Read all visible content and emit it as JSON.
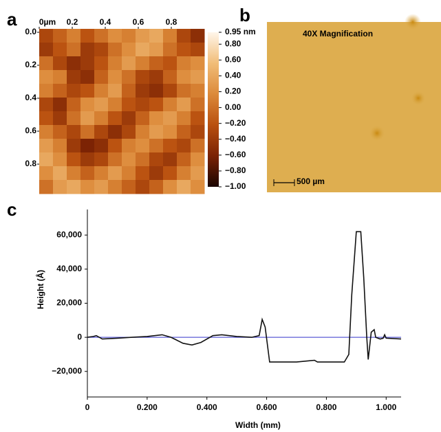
{
  "chart_data": [
    {
      "type": "heatmap",
      "panel_label": "a",
      "xlim": [
        0,
        1
      ],
      "ylim": [
        0,
        1
      ],
      "xticks": [
        {
          "value": 0,
          "label": "0µm"
        },
        0.2,
        0.4,
        0.6,
        0.8
      ],
      "yticks": [
        {
          "value": 0,
          "label": "0.0"
        },
        0.2,
        0.4,
        0.6,
        0.8
      ],
      "clim": [
        -1,
        0.95
      ],
      "colormap": [
        "#1a0500",
        "#7a2204",
        "#b9500f",
        "#dc8a3a",
        "#f1bd78",
        "#fff6ea"
      ],
      "cticks": [
        {
          "value": 0.95,
          "label": "0.95 nm"
        },
        {
          "value": 0.8,
          "label": "0.80"
        },
        {
          "value": 0.6,
          "label": "0.60"
        },
        {
          "value": 0.4,
          "label": "0.40"
        },
        {
          "value": 0.2,
          "label": "0.20"
        },
        {
          "value": 0,
          "label": "0.00"
        },
        {
          "value": -0.2,
          "label": "−0.20"
        },
        {
          "value": -0.4,
          "label": "−0.40"
        },
        {
          "value": -0.6,
          "label": "−0.60"
        },
        {
          "value": -0.8,
          "label": "−0.80"
        },
        {
          "value": -1,
          "label": "−1.00"
        }
      ],
      "values": [
        [
          -0.3,
          -0.1,
          0.1,
          -0.2,
          0.0,
          0.2,
          0.1,
          0.3,
          0.4,
          0.1,
          -0.3,
          -0.5
        ],
        [
          -0.4,
          -0.2,
          0.0,
          -0.4,
          -0.3,
          0.0,
          0.2,
          0.4,
          0.3,
          0.0,
          -0.2,
          -0.3
        ],
        [
          0.0,
          -0.3,
          -0.5,
          -0.4,
          -0.2,
          0.1,
          0.3,
          0.1,
          -0.1,
          -0.2,
          0.1,
          0.2
        ],
        [
          0.2,
          0.1,
          -0.4,
          -0.5,
          -0.1,
          0.2,
          0.0,
          -0.3,
          -0.4,
          -0.1,
          0.2,
          0.3
        ],
        [
          0.1,
          -0.1,
          -0.3,
          -0.2,
          0.1,
          0.3,
          -0.1,
          -0.4,
          -0.5,
          -0.3,
          0.0,
          0.1
        ],
        [
          -0.3,
          -0.5,
          -0.1,
          0.2,
          0.3,
          0.1,
          -0.2,
          -0.3,
          -0.2,
          0.1,
          0.3,
          0.0
        ],
        [
          -0.2,
          -0.4,
          0.0,
          0.3,
          0.1,
          -0.2,
          -0.4,
          -0.1,
          0.2,
          0.3,
          0.1,
          -0.2
        ],
        [
          0.1,
          -0.1,
          -0.3,
          0.0,
          -0.3,
          -0.5,
          -0.3,
          0.1,
          0.3,
          0.2,
          -0.1,
          -0.3
        ],
        [
          0.3,
          0.1,
          -0.4,
          -0.6,
          -0.5,
          -0.2,
          0.1,
          0.2,
          0.0,
          -0.2,
          -0.3,
          0.0
        ],
        [
          0.4,
          0.2,
          -0.2,
          -0.4,
          -0.3,
          0.0,
          0.2,
          0.0,
          -0.3,
          -0.4,
          -0.1,
          0.2
        ],
        [
          0.2,
          0.4,
          0.1,
          -0.1,
          0.1,
          0.3,
          0.1,
          -0.2,
          -0.4,
          -0.2,
          0.1,
          0.3
        ],
        [
          0.0,
          0.3,
          0.4,
          0.2,
          0.3,
          0.1,
          -0.1,
          -0.3,
          -0.1,
          0.2,
          0.4,
          0.2
        ]
      ]
    },
    {
      "type": "image",
      "panel_label": "b",
      "title": "40X Magnification",
      "scale_bar": "500 µm"
    },
    {
      "type": "line",
      "panel_label": "c",
      "xlabel": "Width (mm)",
      "ylabel": "Height (Å)",
      "xlim": [
        0,
        1.05
      ],
      "ylim": [
        -35000,
        75000
      ],
      "xticks": [
        0,
        {
          "value": 0.2,
          "label": "0.200"
        },
        {
          "value": 0.4,
          "label": "0.400"
        },
        {
          "value": 0.6,
          "label": "0.600"
        },
        {
          "value": 0.8,
          "label": "0.800"
        },
        {
          "value": 1.0,
          "label": "1.000"
        }
      ],
      "yticks": [
        {
          "value": 60000,
          "label": "60,000"
        },
        {
          "value": 40000,
          "label": "40,000"
        },
        {
          "value": 20000,
          "label": "20,000"
        },
        0,
        {
          "value": -20000,
          "label": "−20,000"
        }
      ],
      "hline": 0,
      "hline_color": "#5b5bd6",
      "x": [
        0,
        0.02,
        0.03,
        0.05,
        0.1,
        0.15,
        0.2,
        0.25,
        0.28,
        0.32,
        0.35,
        0.38,
        0.42,
        0.45,
        0.5,
        0.55,
        0.575,
        0.585,
        0.595,
        0.61,
        0.7,
        0.76,
        0.77,
        0.86,
        0.875,
        0.885,
        0.9,
        0.915,
        0.925,
        0.935,
        0.94,
        0.95,
        0.96,
        0.965,
        0.98,
        0.99,
        0.995,
        1.0,
        1.05
      ],
      "series": [
        {
          "color": "#111111",
          "values": [
            0,
            500,
            1000,
            -1000,
            -500,
            0,
            500,
            1500,
            0,
            -3500,
            -4500,
            -3000,
            1000,
            1500,
            500,
            0,
            1000,
            10500,
            6000,
            -14500,
            -14500,
            -13500,
            -14500,
            -14500,
            -10000,
            25000,
            62000,
            62000,
            35000,
            0,
            -13000,
            3000,
            4500,
            0,
            -1000,
            -500,
            1500,
            -500,
            -1000
          ]
        }
      ]
    }
  ]
}
